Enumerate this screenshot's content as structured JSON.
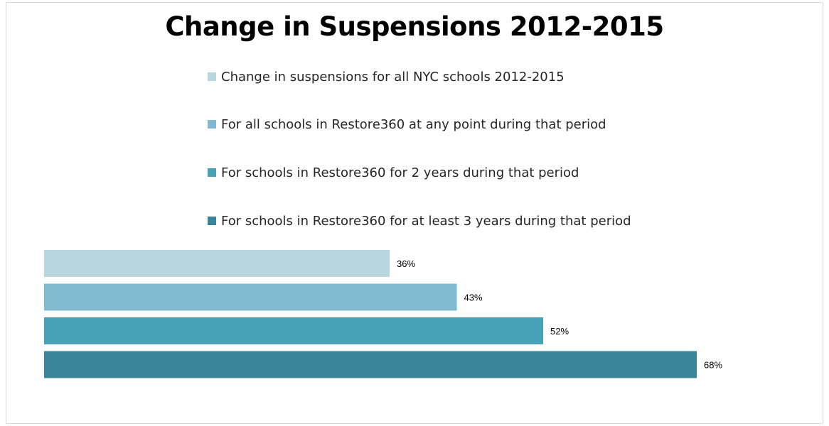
{
  "chart_data": {
    "type": "bar",
    "orientation": "horizontal",
    "title": "Change in Suspensions 2012-2015",
    "legend_position": "top",
    "grid": false,
    "xlim": [
      0,
      80
    ],
    "series": [
      {
        "name": "Change in suspensions for all NYC schools  2012-2015",
        "value": 36,
        "label": "36%",
        "color": "#b7d6e0"
      },
      {
        "name": "For all schools in Restore360 at any point during that period",
        "value": 43,
        "label": "43%",
        "color": "#7fbad0"
      },
      {
        "name": "For schools in Restore360 for 2 years during that period",
        "value": 52,
        "label": "52%",
        "color": "#47a2b8"
      },
      {
        "name": "For schools in Restore360 for at least 3 years during that period",
        "value": 68,
        "label": "68%",
        "color": "#3a8599"
      }
    ]
  }
}
